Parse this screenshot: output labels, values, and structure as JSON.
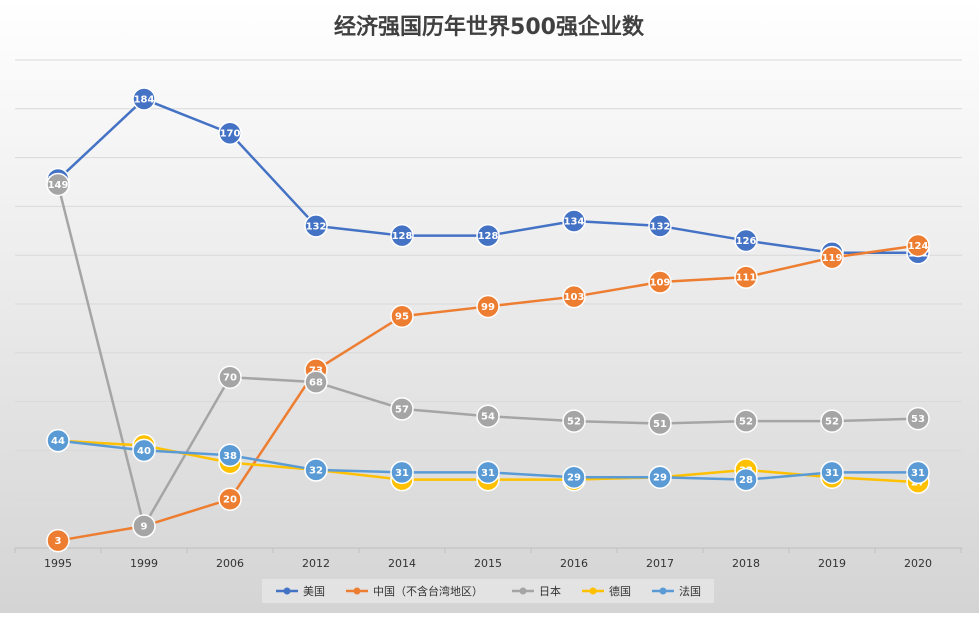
{
  "chart_data": {
    "type": "line",
    "title": "经济强国历年世界500强企业数",
    "xlabel": "",
    "ylabel": "",
    "x": [
      "1995",
      "1999",
      "2006",
      "2012",
      "2014",
      "2015",
      "2016",
      "2017",
      "2018",
      "2019",
      "2020"
    ],
    "ylim": [
      0,
      200
    ],
    "grid": true,
    "legend": "bottom",
    "series": [
      {
        "name": "美国",
        "color": "#4472C4",
        "values": [
          151,
          184,
          170,
          132,
          128,
          128,
          134,
          132,
          126,
          121,
          121
        ]
      },
      {
        "name": "中国（不含台湾地区）",
        "color": "#ED7D31",
        "values": [
          3,
          9,
          20,
          73,
          95,
          99,
          103,
          109,
          111,
          119,
          124
        ]
      },
      {
        "name": "日本",
        "color": "#A5A5A5",
        "values": [
          149,
          9,
          70,
          68,
          57,
          54,
          52,
          51,
          52,
          52,
          53
        ]
      },
      {
        "name": "德国",
        "color": "#FFC000",
        "values": [
          44,
          42,
          35,
          32,
          28,
          28,
          28,
          29,
          32,
          29,
          27
        ]
      },
      {
        "name": "法国",
        "color": "#5B9BD5",
        "values": [
          44,
          40,
          38,
          32,
          31,
          31,
          29,
          29,
          28,
          31,
          31
        ]
      }
    ]
  }
}
